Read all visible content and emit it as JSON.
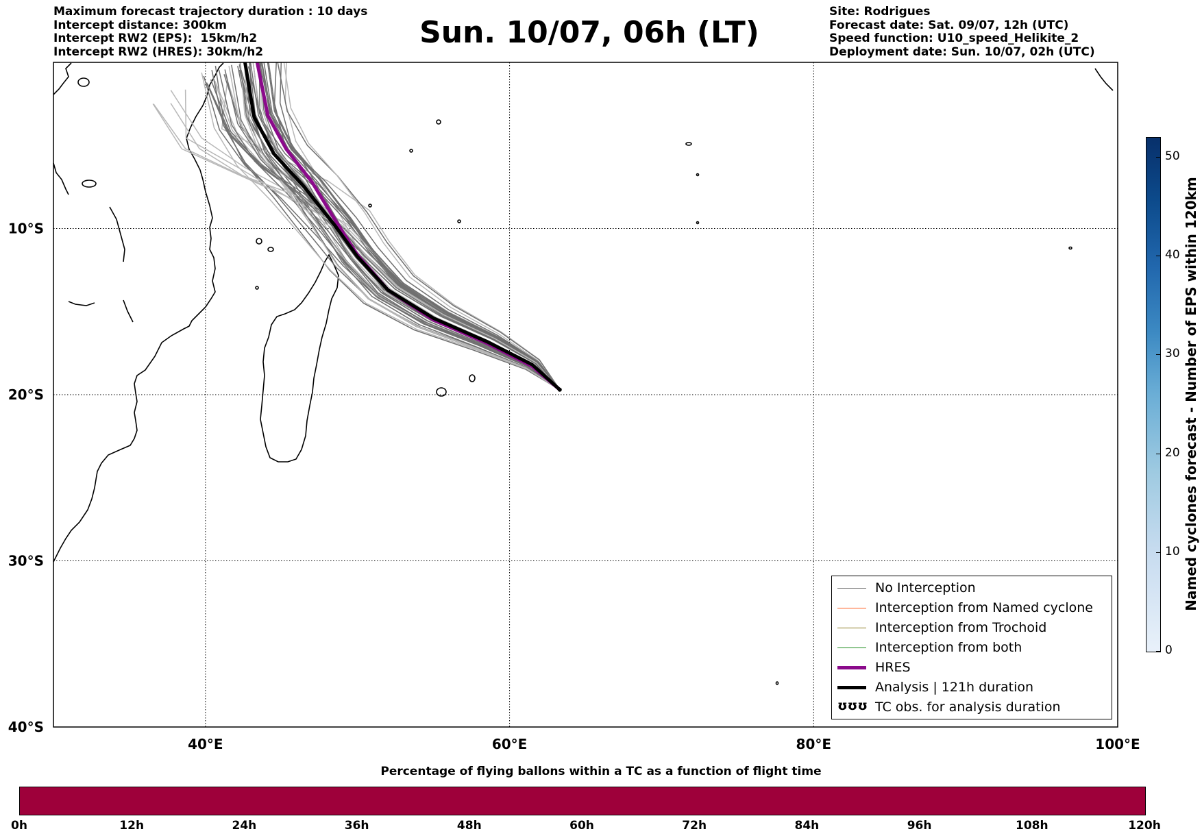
{
  "header_left": [
    "Maximum forecast trajectory duration : 10 days",
    "Intercept distance: 300km",
    "Intercept RW2 (EPS):  15km/h2",
    "Intercept RW2 (HRES): 30km/h2"
  ],
  "title": "Sun. 10/07, 06h (LT)",
  "header_right": [
    "Site: Rodrigues",
    "Forecast date: Sat. 09/07, 12h (UTC)",
    "Speed function: U10_speed_Helikite_2",
    "Deployment date: Sun. 10/07, 02h (UTC)"
  ],
  "map": {
    "lon_range": [
      30,
      100
    ],
    "lat_range": [
      -40,
      0
    ],
    "lon_ticks": [
      {
        "value": 40,
        "label": "40°E"
      },
      {
        "value": 60,
        "label": "60°E"
      },
      {
        "value": 80,
        "label": "80°E"
      },
      {
        "value": 100,
        "label": "100°E"
      }
    ],
    "lat_ticks": [
      {
        "value": -10,
        "label": "10°S"
      },
      {
        "value": -20,
        "label": "20°S"
      },
      {
        "value": -30,
        "label": "30°S"
      },
      {
        "value": -40,
        "label": "40°S"
      }
    ],
    "launch_site": [
      63.3,
      -19.7
    ],
    "analysis_track": [
      [
        63.3,
        -19.7
      ],
      [
        61.5,
        -18.2
      ],
      [
        58.5,
        -16.8
      ],
      [
        55,
        -15.4
      ],
      [
        52,
        -13.7
      ],
      [
        50,
        -11.7
      ],
      [
        48.5,
        -9.8
      ],
      [
        46.5,
        -7.5
      ],
      [
        44.5,
        -5.5
      ],
      [
        43.2,
        -3.3
      ],
      [
        42.6,
        0
      ]
    ],
    "hres_track": [
      [
        63.3,
        -19.7
      ],
      [
        61.5,
        -18.3
      ],
      [
        58.5,
        -16.9
      ],
      [
        55,
        -15.5
      ],
      [
        52,
        -13.7
      ],
      [
        50,
        -11.6
      ],
      [
        48.6,
        -9.6
      ],
      [
        47,
        -7.2
      ],
      [
        45.3,
        -5.2
      ],
      [
        44.1,
        -3.2
      ],
      [
        43.4,
        0
      ]
    ],
    "colors": {
      "no_interception": "#707070",
      "named_cyclone": "#ff5a1e",
      "trochoid": "#8a7a1e",
      "both": "#1a8a1a",
      "hres": "#8b0a8b",
      "analysis": "#000000"
    }
  },
  "legend": [
    {
      "label": "No Interception",
      "style": "thin",
      "color": "#707070"
    },
    {
      "label": "Interception from Named cyclone",
      "style": "thin",
      "color": "#ff5a1e"
    },
    {
      "label": "Interception from Trochoid",
      "style": "thin",
      "color": "#8a7a1e"
    },
    {
      "label": "Interception from both",
      "style": "thin",
      "color": "#1a8a1a"
    },
    {
      "label": "HRES",
      "style": "thick",
      "color": "#8b0a8b"
    },
    {
      "label": "Analysis | 121h duration",
      "style": "thick",
      "color": "#000000"
    },
    {
      "label": "TC obs. for analysis duration",
      "style": "glyph",
      "glyph": "ʊʊʊ"
    }
  ],
  "colorbar": {
    "label": "Named cyclones forecast - Number of EPS within 120km",
    "ticks": [
      "0",
      "10",
      "20",
      "30",
      "40",
      "50"
    ],
    "range": [
      0,
      52
    ]
  },
  "percentage_bar": {
    "title": "Percentage of flying ballons within a TC as a function of flight time",
    "ticks": [
      "0h",
      "12h",
      "24h",
      "36h",
      "48h",
      "60h",
      "72h",
      "84h",
      "96h",
      "108h",
      "120h"
    ],
    "color": "#9e003a"
  }
}
